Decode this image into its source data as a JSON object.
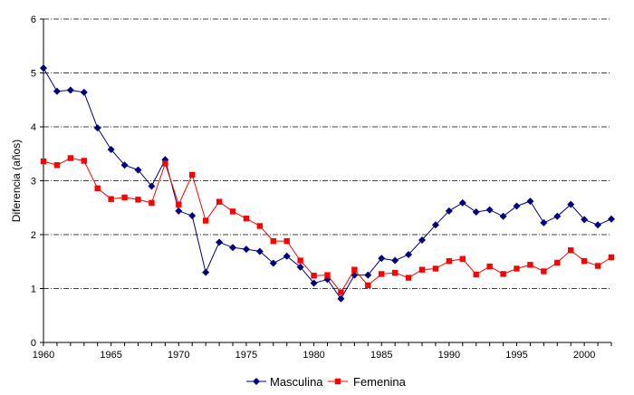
{
  "chart_data": {
    "type": "line",
    "title": "",
    "xlabel": "",
    "ylabel": "Diferencia (años)",
    "xlim": [
      1960,
      2002
    ],
    "ylim": [
      0,
      6
    ],
    "x_ticks": [
      1960,
      1965,
      1970,
      1975,
      1980,
      1985,
      1990,
      1995,
      2000
    ],
    "y_ticks": [
      0,
      1,
      2,
      3,
      4,
      5,
      6
    ],
    "grid": "horizontal dash-dot",
    "legend_position": "bottom",
    "x": [
      1960,
      1961,
      1962,
      1963,
      1964,
      1965,
      1966,
      1967,
      1968,
      1969,
      1970,
      1971,
      1972,
      1973,
      1974,
      1975,
      1976,
      1977,
      1978,
      1979,
      1980,
      1981,
      1982,
      1983,
      1984,
      1985,
      1986,
      1987,
      1988,
      1989,
      1990,
      1991,
      1992,
      1993,
      1994,
      1995,
      1996,
      1997,
      1998,
      1999,
      2000,
      2001,
      2002
    ],
    "series": [
      {
        "name": "Masculina",
        "color": "#000080",
        "marker": "diamond",
        "values": [
          5.09,
          4.66,
          4.68,
          4.64,
          3.98,
          3.58,
          3.29,
          3.2,
          2.9,
          3.39,
          2.44,
          2.35,
          1.3,
          1.86,
          1.76,
          1.73,
          1.69,
          1.47,
          1.6,
          1.4,
          1.1,
          1.17,
          0.81,
          1.25,
          1.25,
          1.56,
          1.52,
          1.63,
          1.9,
          2.18,
          2.44,
          2.59,
          2.42,
          2.46,
          2.34,
          2.53,
          2.62,
          2.22,
          2.34,
          2.56,
          2.28,
          2.18,
          2.29
        ]
      },
      {
        "name": "Femenina",
        "color": "#ff0000",
        "marker": "square",
        "values": [
          3.36,
          3.29,
          3.42,
          3.37,
          2.86,
          2.66,
          2.69,
          2.65,
          2.59,
          3.32,
          2.56,
          3.11,
          2.26,
          2.61,
          2.43,
          2.3,
          2.16,
          1.88,
          1.88,
          1.52,
          1.24,
          1.25,
          0.93,
          1.35,
          1.06,
          1.27,
          1.29,
          1.2,
          1.35,
          1.37,
          1.51,
          1.55,
          1.26,
          1.41,
          1.27,
          1.37,
          1.44,
          1.32,
          1.48,
          1.71,
          1.51,
          1.42,
          1.58
        ]
      }
    ]
  }
}
